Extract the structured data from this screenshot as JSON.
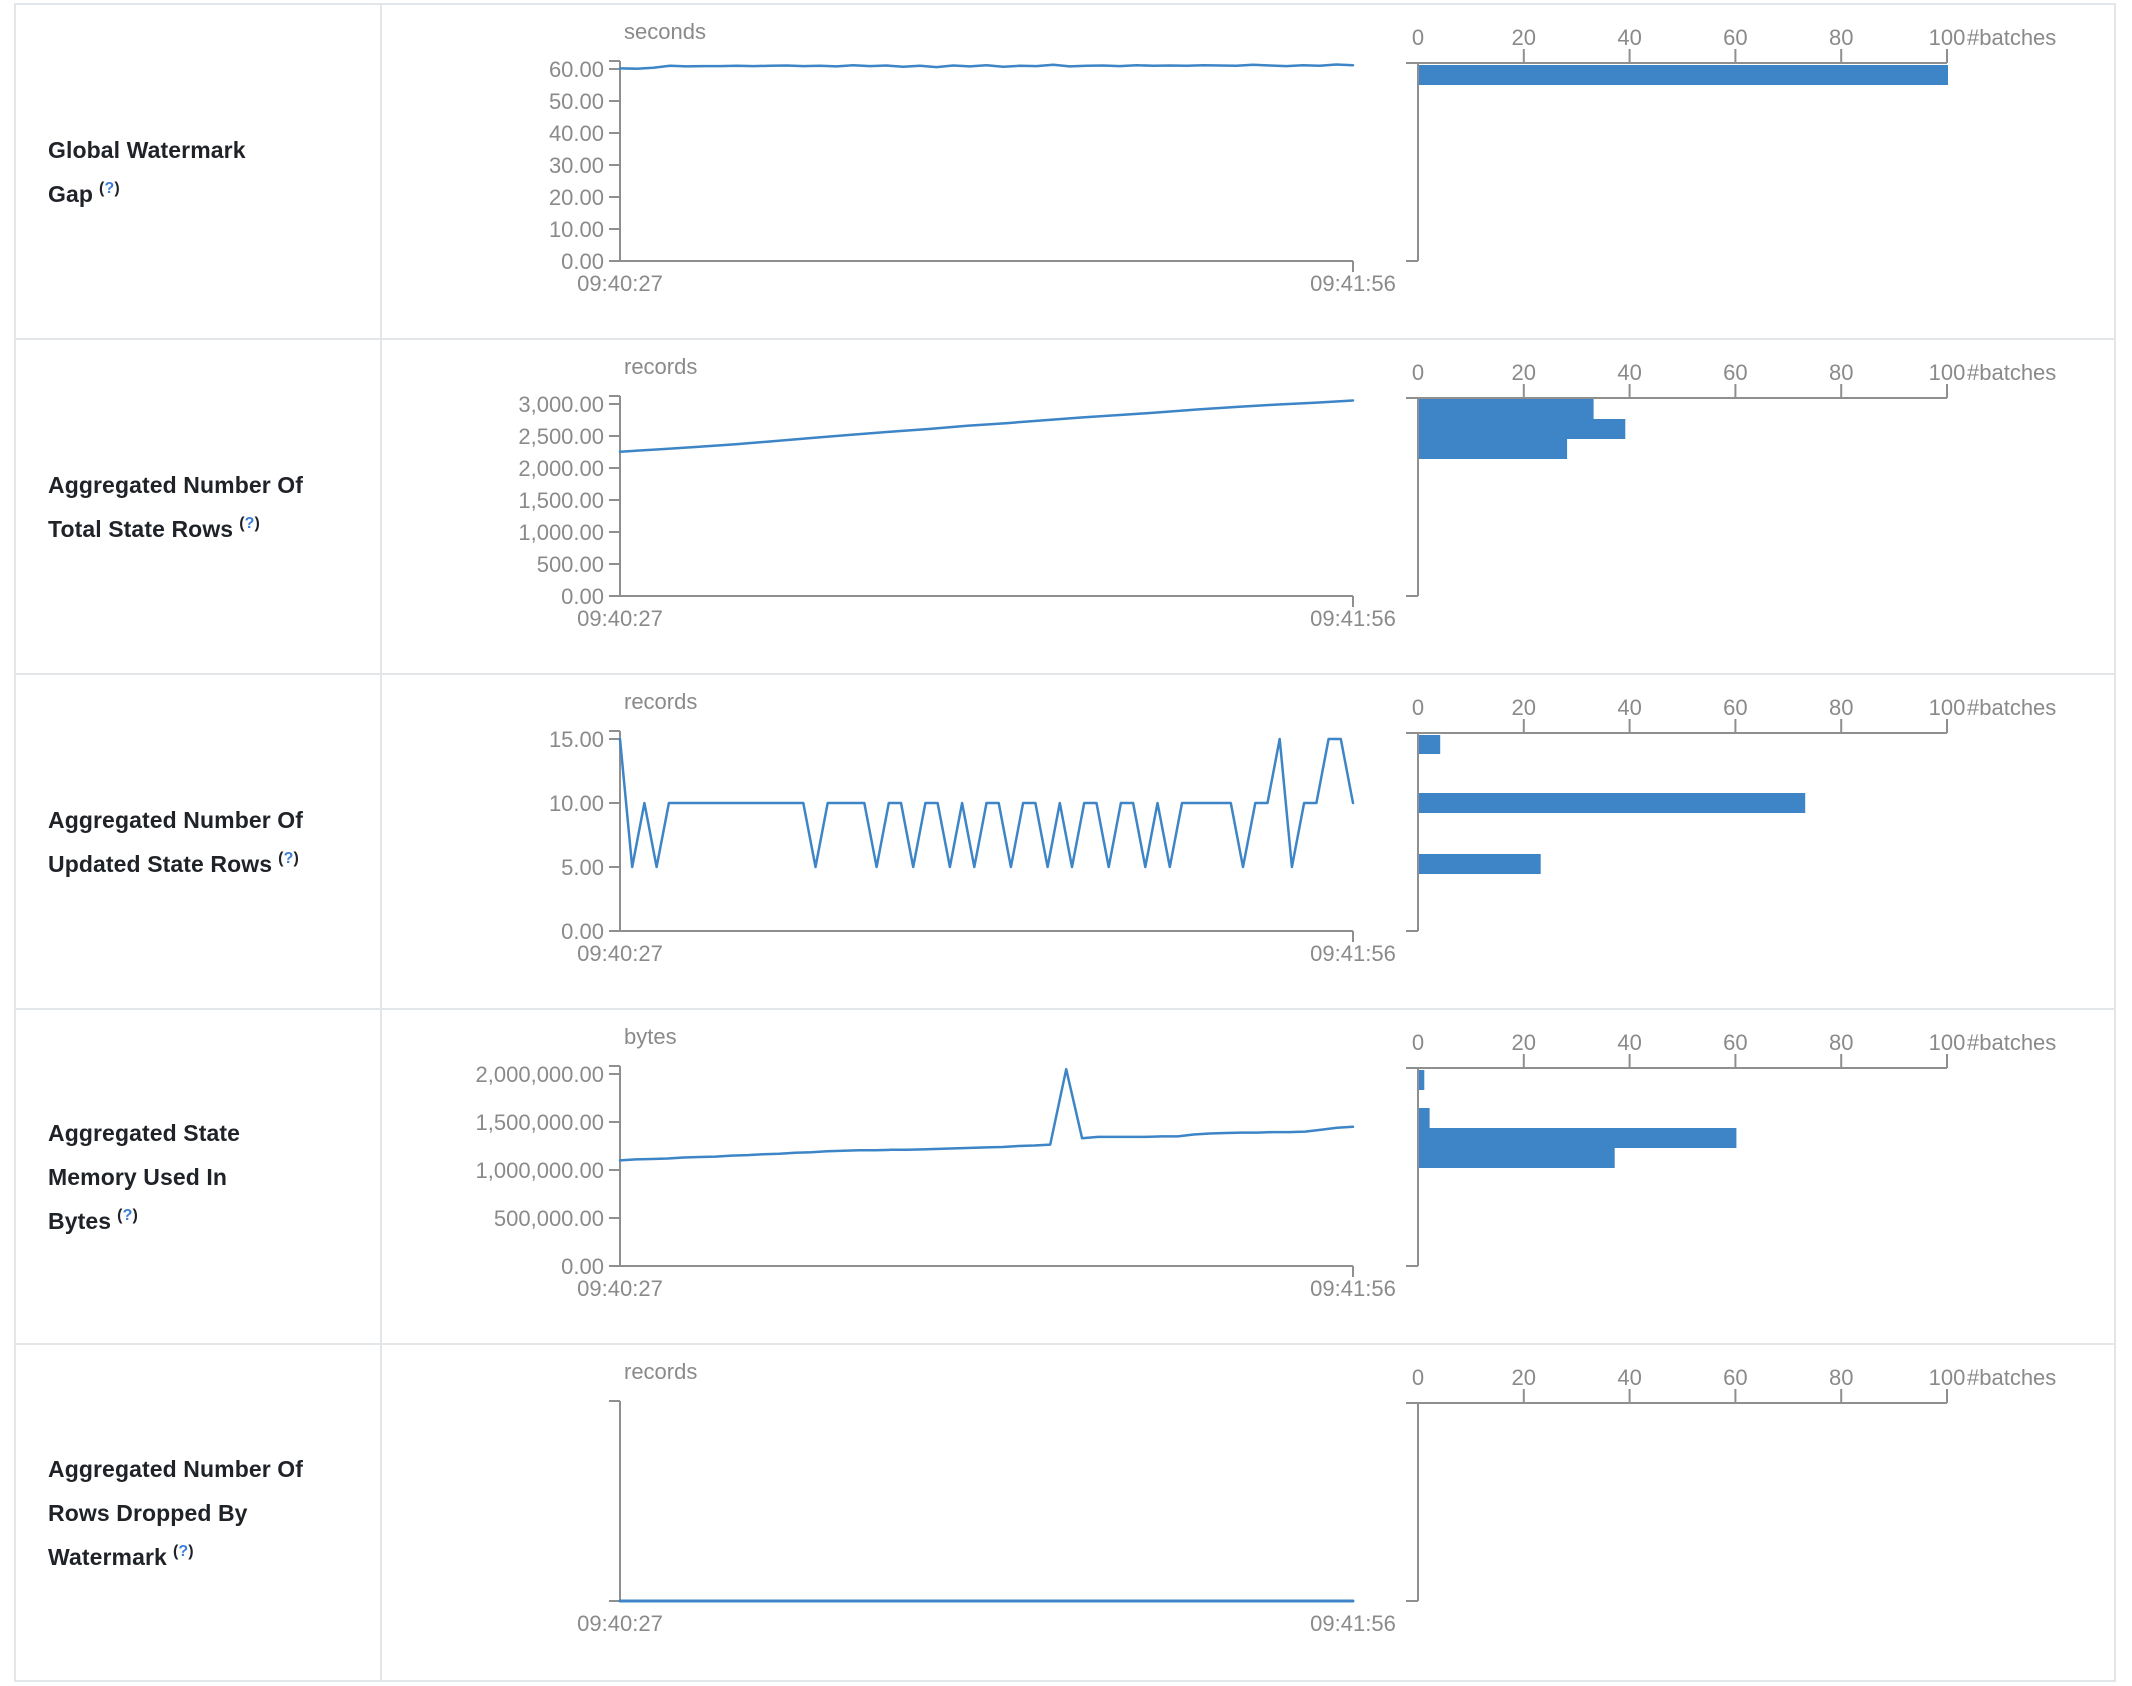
{
  "colors": {
    "accent": "#3d85c6",
    "axis": "#8f8f8f",
    "tick_text": "#8a8a8a",
    "label_text": "#1f2328",
    "help_link": "#3b7dd8",
    "border": "#e3e6e9"
  },
  "chart_data": [
    {
      "label": "Global Watermark Gap",
      "help_prefix": "(",
      "help_label": "?",
      "help_suffix": ")",
      "timeline": {
        "type": "line",
        "unit": "seconds",
        "x_start": "09:40:27",
        "x_end": "09:41:56",
        "ytick_labels": [
          "60.00",
          "50.00",
          "40.00",
          "30.00",
          "20.00",
          "10.00",
          "0.00"
        ],
        "y_top_value": 60,
        "series": [
          60.2,
          60.1,
          60.4,
          61.0,
          60.8,
          60.9,
          60.9,
          61.0,
          60.9,
          61.0,
          61.1,
          60.9,
          61.0,
          60.8,
          61.2,
          60.9,
          61.1,
          60.7,
          61.0,
          60.6,
          61.1,
          60.8,
          61.2,
          60.7,
          61.0,
          60.9,
          61.3,
          60.8,
          61.0,
          61.1,
          60.9,
          61.2,
          61.0,
          61.1,
          61.0,
          61.2,
          61.1,
          61.0,
          61.3,
          61.1,
          60.9,
          61.2,
          61.0,
          61.4,
          61.2
        ]
      },
      "histogram": {
        "type": "bar",
        "xlabel": "#batches",
        "xtick_labels": [
          "0",
          "20",
          "40",
          "60",
          "80",
          "100"
        ],
        "xmax": 100,
        "bars": [
          {
            "value": 100,
            "top": 2,
            "h": 20
          }
        ]
      }
    },
    {
      "label": "Aggregated Number Of Total State Rows",
      "help_prefix": "(",
      "help_label": "?",
      "help_suffix": ")",
      "timeline": {
        "type": "line",
        "unit": "records",
        "x_start": "09:40:27",
        "x_end": "09:41:56",
        "ytick_labels": [
          "3,000.00",
          "2,500.00",
          "2,000.00",
          "1,500.00",
          "1,000.00",
          "500.00",
          "0.00"
        ],
        "y_top_value": 3000,
        "series": [
          2255,
          2290,
          2330,
          2370,
          2420,
          2470,
          2520,
          2565,
          2610,
          2660,
          2700,
          2745,
          2790,
          2830,
          2870,
          2915,
          2955,
          2990,
          3020,
          3055
        ]
      },
      "histogram": {
        "type": "bar",
        "xlabel": "#batches",
        "xtick_labels": [
          "0",
          "20",
          "40",
          "60",
          "80",
          "100"
        ],
        "xmax": 100,
        "bars": [
          {
            "value": 33,
            "top": 1,
            "h": 20
          },
          {
            "value": 39,
            "top": 21,
            "h": 20
          },
          {
            "value": 28,
            "top": 41,
            "h": 20
          }
        ]
      }
    },
    {
      "label": "Aggregated Number Of Updated State Rows",
      "help_prefix": "(",
      "help_label": "?",
      "help_suffix": ")",
      "timeline": {
        "type": "line",
        "unit": "records",
        "x_start": "09:40:27",
        "x_end": "09:41:56",
        "ytick_labels": [
          "15.00",
          "10.00",
          "5.00",
          "0.00"
        ],
        "y_top_value": 15,
        "series": [
          15,
          5,
          10,
          5,
          10,
          10,
          10,
          10,
          10,
          10,
          10,
          10,
          10,
          10,
          10,
          10,
          5,
          10,
          10,
          10,
          10,
          5,
          10,
          10,
          5,
          10,
          10,
          5,
          10,
          5,
          10,
          10,
          5,
          10,
          10,
          5,
          10,
          5,
          10,
          10,
          5,
          10,
          10,
          5,
          10,
          5,
          10,
          10,
          10,
          10,
          10,
          5,
          10,
          10,
          15,
          5,
          10,
          10,
          15,
          15,
          10
        ]
      },
      "histogram": {
        "type": "bar",
        "xlabel": "#batches",
        "xtick_labels": [
          "0",
          "20",
          "40",
          "60",
          "80",
          "100"
        ],
        "xmax": 100,
        "bars": [
          {
            "value": 4,
            "top": 2,
            "h": 19
          },
          {
            "value": 73,
            "top": 60,
            "h": 20
          },
          {
            "value": 23,
            "top": 121,
            "h": 20
          }
        ]
      }
    },
    {
      "label": "Aggregated State Memory Used In Bytes",
      "help_prefix": "(",
      "help_label": "?",
      "help_suffix": ")",
      "timeline": {
        "type": "line",
        "unit": "bytes",
        "x_start": "09:40:27",
        "x_end": "09:41:56",
        "ytick_labels": [
          "2,000,000.00",
          "1,500,000.00",
          "1,000,000.00",
          "500,000.00",
          "0.00"
        ],
        "y_top_value": 2000000,
        "series": [
          1100000,
          1110000,
          1115000,
          1120000,
          1130000,
          1135000,
          1140000,
          1150000,
          1155000,
          1165000,
          1170000,
          1180000,
          1185000,
          1195000,
          1200000,
          1205000,
          1205000,
          1210000,
          1210000,
          1215000,
          1220000,
          1225000,
          1230000,
          1235000,
          1240000,
          1250000,
          1255000,
          1265000,
          2050000,
          1330000,
          1345000,
          1345000,
          1345000,
          1345000,
          1350000,
          1350000,
          1370000,
          1380000,
          1385000,
          1390000,
          1390000,
          1395000,
          1395000,
          1400000,
          1420000,
          1440000,
          1450000
        ]
      },
      "histogram": {
        "type": "bar",
        "xlabel": "#batches",
        "xtick_labels": [
          "0",
          "20",
          "40",
          "60",
          "80",
          "100"
        ],
        "xmax": 100,
        "bars": [
          {
            "value": 1,
            "top": 2,
            "h": 20
          },
          {
            "value": 2,
            "top": 40,
            "h": 20
          },
          {
            "value": 60,
            "top": 60,
            "h": 20
          },
          {
            "value": 37,
            "top": 80,
            "h": 20
          }
        ]
      }
    },
    {
      "label": "Aggregated Number Of Rows Dropped By Watermark",
      "help_prefix": "(",
      "help_label": "?",
      "help_suffix": ")",
      "timeline": {
        "type": "line",
        "unit": "records",
        "x_start": "09:40:27",
        "x_end": "09:41:56",
        "ytick_labels": [],
        "y_top_value": 1,
        "line_width": 3,
        "series": [
          0,
          0
        ]
      },
      "histogram": {
        "type": "bar",
        "xlabel": "#batches",
        "xtick_labels": [
          "0",
          "20",
          "40",
          "60",
          "80",
          "100"
        ],
        "xmax": 100,
        "bars": []
      }
    }
  ]
}
